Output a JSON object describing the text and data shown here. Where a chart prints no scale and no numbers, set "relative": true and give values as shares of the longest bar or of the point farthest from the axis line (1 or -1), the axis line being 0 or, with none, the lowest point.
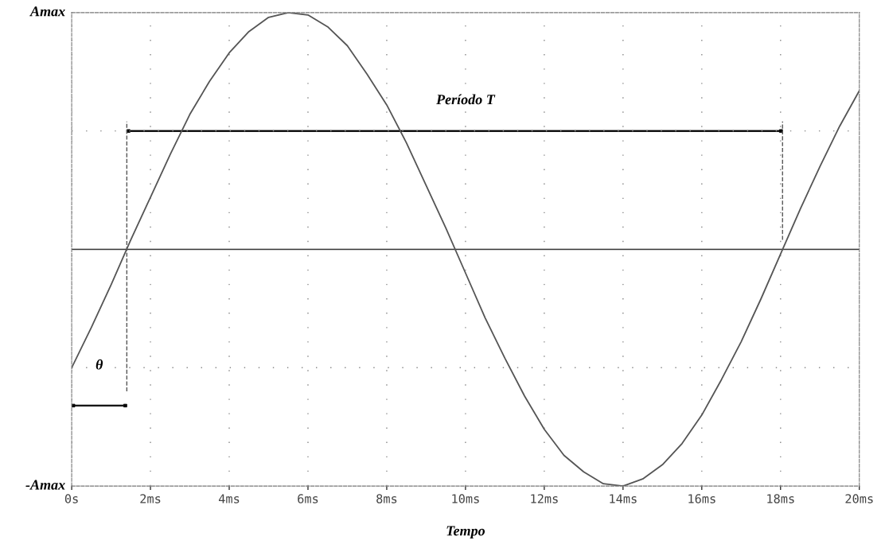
{
  "chart_data": {
    "type": "line",
    "relative": true,
    "xlabel": "Tempo",
    "x": [
      0,
      0.5,
      1,
      1.5,
      2,
      2.5,
      3,
      3.5,
      4,
      4.5,
      5,
      5.5,
      6,
      6.5,
      7,
      7.5,
      8,
      8.5,
      9,
      9.5,
      10,
      10.5,
      11,
      11.5,
      12,
      12.5,
      13,
      13.5,
      14,
      14.5,
      15,
      15.5,
      16,
      16.5,
      17,
      17.5,
      18,
      18.5,
      19,
      19.5,
      20
    ],
    "series": [
      {
        "color": "#555555",
        "values": [
          -0.5,
          -0.33,
          -0.15,
          0.04,
          0.22,
          0.4,
          0.57,
          0.71,
          0.83,
          0.92,
          0.98,
          1.0,
          0.99,
          0.94,
          0.86,
          0.74,
          0.61,
          0.45,
          0.27,
          0.09,
          -0.1,
          -0.29,
          -0.46,
          -0.62,
          -0.76,
          -0.87,
          -0.94,
          -0.99,
          -1.0,
          -0.97,
          -0.91,
          -0.82,
          -0.7,
          -0.55,
          -0.39,
          -0.21,
          -0.02,
          0.17,
          0.35,
          0.52,
          0.67
        ]
      }
    ],
    "xlim": [
      0,
      20
    ],
    "xticks": [
      {
        "value": 0,
        "label": "0s"
      },
      {
        "value": 2,
        "label": "2ms"
      },
      {
        "value": 4,
        "label": "4ms"
      },
      {
        "value": 6,
        "label": "6ms"
      },
      {
        "value": 8,
        "label": "8ms"
      },
      {
        "value": 10,
        "label": "10ms"
      },
      {
        "value": 12,
        "label": "12ms"
      },
      {
        "value": 14,
        "label": "14ms"
      },
      {
        "value": 16,
        "label": "16ms"
      },
      {
        "value": 18,
        "label": "18ms"
      },
      {
        "value": 20,
        "label": "20ms"
      }
    ],
    "ref_lines": [
      {
        "axis": "x",
        "value": 1.4,
        "color": "#555555",
        "line_style": "dashed"
      },
      {
        "axis": "x",
        "value": 18.05,
        "color": "#555555",
        "line_style": "dashed"
      }
    ],
    "annotations": [
      "Período T",
      "θ",
      "Amax",
      "-Amax"
    ],
    "grid": true,
    "line_style": "solid",
    "marker": "none"
  }
}
